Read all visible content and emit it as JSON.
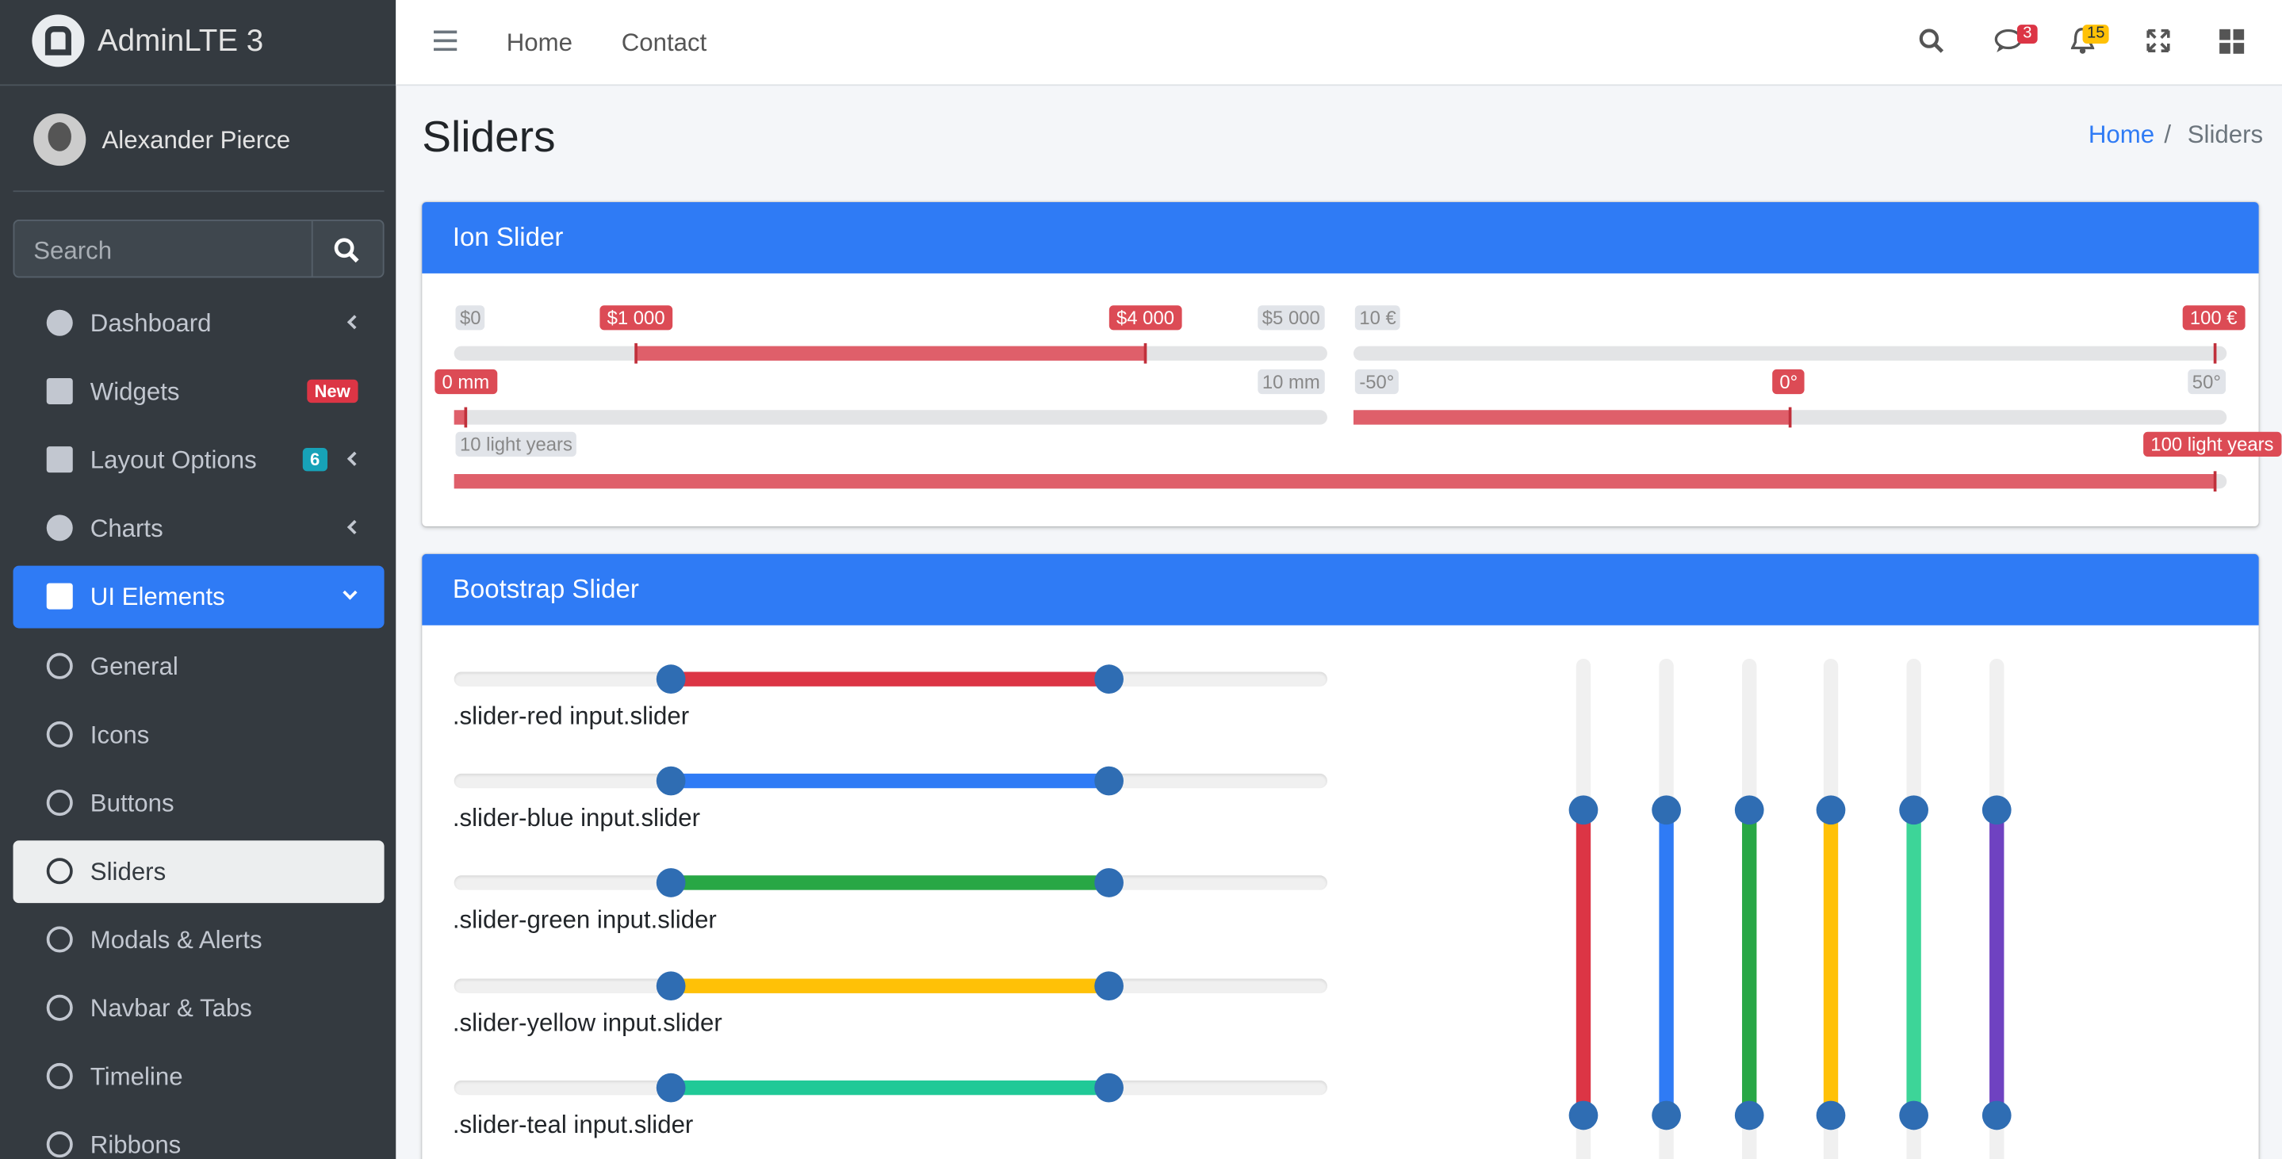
{
  "sidebar": {
    "brand": "AdminLTE 3",
    "user": "Alexander Pierce",
    "search_placeholder": "Search",
    "menu": [
      {
        "label": "Dashboard"
      },
      {
        "label": "Widgets",
        "badge": "New"
      },
      {
        "label": "Layout Options",
        "badge": "6"
      },
      {
        "label": "Charts"
      },
      {
        "label": "UI Elements"
      },
      {
        "label": "General"
      },
      {
        "label": "Icons"
      },
      {
        "label": "Buttons"
      },
      {
        "label": "Sliders"
      },
      {
        "label": "Modals & Alerts"
      },
      {
        "label": "Navbar & Tabs"
      },
      {
        "label": "Timeline"
      },
      {
        "label": "Ribbons"
      }
    ]
  },
  "navbar": {
    "links": [
      "Home",
      "Contact"
    ],
    "messages_badge": "3",
    "notifications_badge": "15"
  },
  "header": {
    "title": "Sliders",
    "breadcrumb": [
      "Home",
      "Sliders"
    ]
  },
  "ion_slider": {
    "title": "Ion Slider",
    "sliders": [
      {
        "min": "$0",
        "max": "$5 000",
        "from": "$1 000",
        "to": "$4 000"
      },
      {
        "min": "10 €",
        "value": "100 €"
      },
      {
        "value": "0 mm",
        "max": "10 mm"
      },
      {
        "min": "-50°",
        "value": "0°",
        "max": "50°"
      },
      {
        "min": "10 light years",
        "value": "100 light years"
      }
    ]
  },
  "bootstrap_slider": {
    "title": "Bootstrap Slider",
    "labels": [
      ".slider-red input.slider",
      ".slider-blue input.slider",
      ".slider-green input.slider",
      ".slider-yellow input.slider",
      ".slider-teal input.slider"
    ]
  }
}
